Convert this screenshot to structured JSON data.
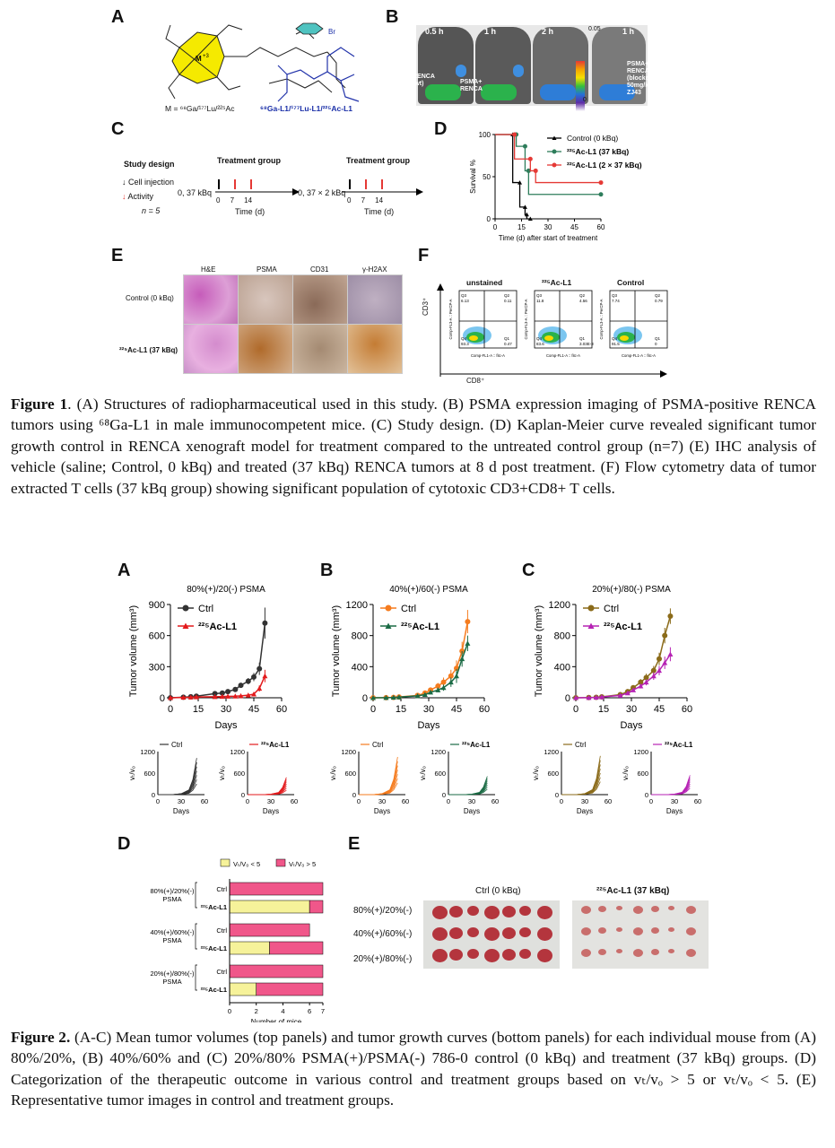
{
  "figure1": {
    "panel_labels": [
      "A",
      "B",
      "C",
      "D",
      "E",
      "F"
    ],
    "A": {
      "chelator_metal": "M",
      "chelator_metal_sup": "+3",
      "substituent": "Br",
      "metal_caption": "M = ⁶⁸Ga/¹⁷⁷Lu/²²⁵Ac",
      "compound_caption": "⁶⁸Ga-L1/¹⁷⁷Lu-L1/²²⁵Ac-L1"
    },
    "B": {
      "timepoints": [
        "0.5 h",
        "1 h",
        "2 h",
        "1 h"
      ],
      "scale_max": "0.05",
      "scale_min": "0",
      "label_renca_wt": "RENCA\n(wt)",
      "label_psma_renca": "PSMA+\nRENCA",
      "label_blocked": "PSMA+\nRENCA\n(blocked)\n50mg/kg\nZJ43"
    },
    "C": {
      "study_design": "Study design",
      "legend_cell": "Cell injection",
      "legend_activity": "Activity",
      "n_label": "n = 5",
      "group1_title": "Treatment group",
      "group1_dose": "0, 37 kBq",
      "group2_title": "Treatment group",
      "group2_dose": "0, 37 × 2 kBq",
      "ticks": [
        "0",
        "7",
        "14"
      ],
      "xlabel": "Time (d)"
    },
    "D": {
      "ylabel": "Survival %",
      "xlabel": "Time (d) after start of treatment",
      "legend": [
        "Control (0 kBq)",
        "²²⁵Ac-L1 (37 kBq)",
        "²²⁵Ac-L1 (2 × 37 kBq)"
      ]
    },
    "E": {
      "columns": [
        "H&E",
        "PSMA",
        "CD31",
        "γ-H2AX"
      ],
      "rows": [
        "Control (0 kBq)",
        "²²⁵Ac-L1 (37 kBq)"
      ]
    },
    "F": {
      "titles": [
        "unstained",
        "²²⁵Ac-L1",
        "Control"
      ],
      "yaxis": "CD3⁺",
      "xaxis": "CD8⁺",
      "quadrants": [
        {
          "q3": "Q3\n6.13",
          "q2": "Q2\n0.11",
          "q4": "Q4\n93.3",
          "q1": "Q1\n0.47"
        },
        {
          "q3": "Q3\n11.8",
          "q2": "Q2\n4.56",
          "q4": "Q4\n83.6",
          "q1": "Q1\n3.03E-3"
        },
        {
          "q3": "Q3\n7.74",
          "q2": "Q2\n0.79",
          "q4": "Q4\n91.5",
          "q1": "Q1\n0"
        }
      ],
      "axis_title_y": "Comp-FL3-A :: PerCP-A",
      "axis_title_x": "Comp-FL1-A :: fitc-A"
    },
    "caption_lead": "Figure 1",
    "caption_text": ". (A) Structures of radiopharmaceutical used in this study. (B) PSMA expression imaging of PSMA-positive RENCA tumors using ⁶⁸Ga-L1 in male immunocompetent mice. (C) Study design. (D) Kaplan-Meier curve revealed significant tumor growth control in RENCA xenograft model for treatment compared to the untreated control group (n=7) (E) IHC analysis of vehicle (saline; Control, 0 kBq) and treated (37 kBq) RENCA tumors at 8 d post treatment. (F) Flow cytometry data of tumor extracted T cells (37 kBq group) showing significant population of cytotoxic CD3+CD8+ T cells."
  },
  "figure2": {
    "panel_labels": [
      "A",
      "B",
      "C",
      "D",
      "E"
    ],
    "top_titles": [
      "80%(+)/20(-) PSMA",
      "40%(+)/60(-) PSMA",
      "20%(+)/80(-) PSMA"
    ],
    "top_ylabel": "Tumor volume (mm³)",
    "top_xlabel": "Days",
    "legend_ctrl": "Ctrl",
    "legend_treat": "²²⁵Ac-L1",
    "small_ylabel": "vₜ/v₀",
    "small_xlabel": "Days",
    "D": {
      "legend": [
        "Vₜ/V₀ < 5",
        "Vₜ/V₀ > 5"
      ],
      "groups": [
        "80%(+)/20%(-)\nPSMA",
        "40%(+)/60%(-)\nPSMA",
        "20%(+)/80%(-)\nPSMA"
      ],
      "bar_labels": [
        "Ctrl",
        "²²⁵Ac-L1",
        "Ctrl",
        "²²⁵Ac-L1",
        "Ctrl",
        "²²⁵Ac-L1"
      ],
      "xlabel": "Number of mice",
      "xticks": [
        "0",
        "2",
        "4",
        "6",
        "7"
      ]
    },
    "E": {
      "col_titles": [
        "Ctrl (0 kBq)",
        "²²⁵Ac-L1 (37 kBq)"
      ],
      "row_labels": [
        "80%(+)/20%(-)",
        "40%(+)/60%(-)",
        "20%(+)/80%(-)"
      ]
    },
    "caption_lead": "Figure 2.",
    "caption_text": " (A-C) Mean tumor volumes (top panels) and tumor growth curves (bottom panels) for each individual mouse from (A) 80%/20%, (B) 40%/60% and (C) 20%/80% PSMA(+)/PSMA(-) 786-0 control (0 kBq) and treatment (37 kBq) groups. (D) Categorization of the therapeutic outcome in various control and treatment groups based on vₜ/vₒ > 5 or vₜ/vₒ < 5. (E) Representative tumor images in control and treatment groups."
  },
  "chart_data": [
    {
      "type": "line",
      "title": "",
      "xlabel": "Time (d) after start of treatment",
      "ylabel": "Survival %",
      "xlim": [
        0,
        60
      ],
      "ylim": [
        0,
        100
      ],
      "xticks": [
        0,
        15,
        30,
        45,
        60
      ],
      "yticks": [
        0,
        50,
        100
      ],
      "series": [
        {
          "name": "Control (0 kBq)",
          "color": "#000000",
          "marker": "triangle",
          "x": [
            0,
            10,
            10,
            14,
            14,
            17,
            17,
            18,
            18,
            20
          ],
          "y": [
            100,
            100,
            43,
            43,
            14,
            14,
            5,
            5,
            0,
            0
          ]
        },
        {
          "name": "²²⁵Ac-L1 (37 kBq)",
          "color": "#2e7d5b",
          "marker": "circle",
          "x": [
            0,
            12,
            12,
            17,
            17,
            19,
            19,
            60
          ],
          "y": [
            100,
            100,
            86,
            86,
            57,
            57,
            29,
            29
          ]
        },
        {
          "name": "²²⁵Ac-L1 (2 × 37 kBq)",
          "color": "#e53935",
          "marker": "circle",
          "x": [
            0,
            11,
            11,
            20,
            20,
            23,
            23,
            60
          ],
          "y": [
            100,
            100,
            71,
            71,
            57,
            57,
            43,
            43
          ]
        }
      ]
    },
    {
      "type": "line",
      "title": "80%(+)/20(-) PSMA",
      "xlabel": "Days",
      "ylabel": "Tumor volume (mm³)",
      "xlim": [
        0,
        60
      ],
      "ylim": [
        0,
        900
      ],
      "xticks": [
        0,
        15,
        30,
        45,
        60
      ],
      "yticks": [
        0,
        300,
        600,
        900
      ],
      "series": [
        {
          "name": "Ctrl",
          "color": "#333333",
          "x": [
            0,
            7,
            11,
            14,
            24,
            28,
            31,
            35,
            38,
            42,
            45,
            48,
            51
          ],
          "y": [
            0,
            5,
            10,
            15,
            40,
            45,
            60,
            80,
            120,
            160,
            200,
            280,
            720
          ],
          "err": [
            0,
            2,
            3,
            4,
            10,
            12,
            15,
            18,
            22,
            30,
            40,
            60,
            150
          ]
        },
        {
          "name": "²²⁵Ac-L1",
          "color": "#e31a1c",
          "x": [
            0,
            7,
            11,
            14,
            24,
            28,
            31,
            35,
            38,
            42,
            45,
            48,
            51
          ],
          "y": [
            0,
            3,
            5,
            8,
            10,
            12,
            14,
            15,
            18,
            25,
            35,
            90,
            210
          ],
          "err": [
            0,
            1,
            2,
            2,
            3,
            3,
            4,
            4,
            5,
            8,
            10,
            30,
            60
          ]
        }
      ]
    },
    {
      "type": "line",
      "title": "40%(+)/60(-) PSMA",
      "xlabel": "Days",
      "ylabel": "Tumor volume (mm³)",
      "xlim": [
        0,
        60
      ],
      "ylim": [
        0,
        1200
      ],
      "xticks": [
        0,
        15,
        30,
        45,
        60
      ],
      "yticks": [
        0,
        400,
        800,
        1200
      ],
      "series": [
        {
          "name": "Ctrl",
          "color": "#f57c1f",
          "x": [
            0,
            7,
            11,
            14,
            24,
            28,
            31,
            35,
            38,
            42,
            45,
            48,
            51
          ],
          "y": [
            0,
            2,
            5,
            10,
            30,
            60,
            100,
            150,
            200,
            280,
            380,
            600,
            980
          ],
          "err": [
            0,
            1,
            2,
            4,
            15,
            20,
            30,
            40,
            60,
            80,
            100,
            120,
            150
          ]
        },
        {
          "name": "²²⁵Ac-L1",
          "color": "#1b6b45",
          "x": [
            0,
            7,
            11,
            14,
            24,
            28,
            31,
            35,
            38,
            42,
            45,
            48,
            51
          ],
          "y": [
            0,
            2,
            4,
            8,
            25,
            40,
            70,
            100,
            130,
            200,
            280,
            500,
            700
          ],
          "err": [
            0,
            1,
            2,
            3,
            10,
            15,
            20,
            30,
            40,
            60,
            90,
            100,
            100
          ]
        }
      ]
    },
    {
      "type": "line",
      "title": "20%(+)/80(-) PSMA",
      "xlabel": "Days",
      "ylabel": "Tumor volume (mm³)",
      "xlim": [
        0,
        60
      ],
      "ylim": [
        0,
        1200
      ],
      "xticks": [
        0,
        15,
        30,
        45,
        60
      ],
      "yticks": [
        0,
        400,
        800,
        1200
      ],
      "series": [
        {
          "name": "Ctrl",
          "color": "#8b6b1a",
          "x": [
            0,
            7,
            11,
            14,
            24,
            28,
            31,
            35,
            38,
            42,
            45,
            48,
            51
          ],
          "y": [
            0,
            3,
            6,
            12,
            40,
            80,
            130,
            200,
            260,
            350,
            500,
            800,
            1050
          ],
          "err": [
            0,
            1,
            2,
            4,
            15,
            20,
            30,
            40,
            50,
            60,
            80,
            100,
            100
          ]
        },
        {
          "name": "²²⁵Ac-L1",
          "color": "#b623b4",
          "x": [
            0,
            7,
            11,
            14,
            24,
            28,
            31,
            35,
            38,
            42,
            45,
            48,
            51
          ],
          "y": [
            0,
            2,
            5,
            10,
            30,
            60,
            100,
            150,
            200,
            280,
            350,
            450,
            560
          ],
          "err": [
            0,
            1,
            2,
            3,
            10,
            15,
            25,
            30,
            40,
            50,
            60,
            80,
            90
          ]
        }
      ]
    },
    {
      "type": "bar",
      "orientation": "horizontal",
      "xlabel": "Number of mice",
      "xlim": [
        0,
        7
      ],
      "categories": [
        "80%(+)/20%(-) Ctrl",
        "80%(+)/20%(-) ²²⁵Ac-L1",
        "40%(+)/60%(-) Ctrl",
        "40%(+)/60%(-) ²²⁵Ac-L1",
        "20%(+)/80%(-) Ctrl",
        "20%(+)/80%(-) ²²⁵Ac-L1"
      ],
      "series": [
        {
          "name": "Vₜ/V₀ < 5",
          "color": "#f6f29a",
          "values": [
            0,
            6,
            0,
            3,
            0,
            2
          ]
        },
        {
          "name": "Vₜ/V₀ > 5",
          "color": "#f0578a",
          "values": [
            7,
            1,
            6,
            4,
            7,
            5
          ]
        }
      ]
    }
  ]
}
